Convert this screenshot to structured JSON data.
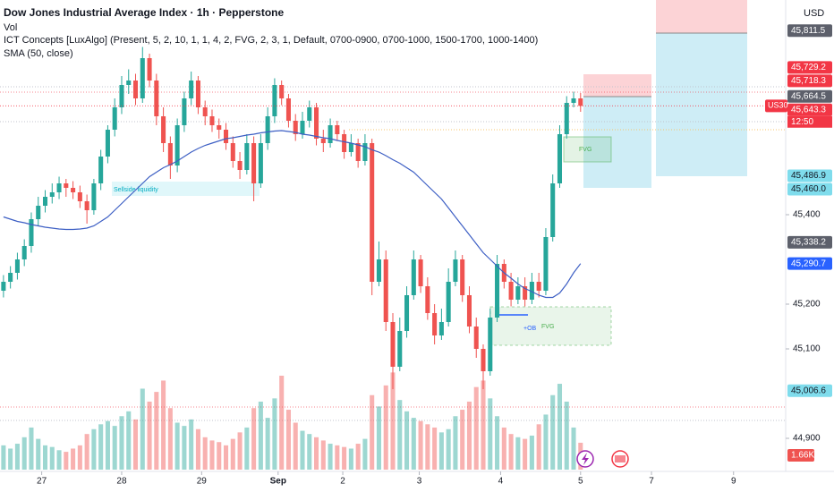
{
  "chart_data": {
    "type": "candlestick",
    "title": "Dow Jones Industrial Average Index · 1h · Pepperstone",
    "indicators": [
      "Vol",
      "ICT Concepts [LuxAlgo] (Present, 5, 2, 10, 1, 1, 4, 2, FVG, 2, 3, 1, Default, 0700-0900, 0700-1000, 1500-1700, 1000-1400)",
      "SMA (50, close)"
    ],
    "currency": "USD",
    "symbol_tag": "US30",
    "countdown": "12:50",
    "up_color": "#26a69a",
    "down_color": "#ef5350",
    "open": [
      45230,
      45250,
      45270,
      45300,
      45330,
      45390,
      45420,
      45440,
      45450,
      45470,
      45460,
      45450,
      45430,
      45410,
      45470,
      45530,
      45590,
      45640,
      45690,
      45700,
      45660,
      45750,
      45700,
      45620,
      45560,
      45510,
      45600,
      45660,
      45700,
      45640,
      45620,
      45600,
      45590,
      45560,
      45520,
      45500,
      45560,
      45470,
      45560,
      45620,
      45690,
      45660,
      45610,
      45580,
      45610,
      45640,
      45570,
      45560,
      45600,
      45580,
      45540,
      45560,
      45520,
      45560,
      45250,
      45300,
      45160,
      45060,
      45140,
      45220,
      45300,
      45240,
      45180,
      45130,
      45160,
      45250,
      45300,
      45220,
      45150,
      45100,
      45050,
      45170,
      45290,
      45250,
      45210,
      45240,
      45210,
      45250,
      45230,
      45350,
      45470,
      45580,
      45650,
      45660
    ],
    "high": [
      45265,
      45285,
      45315,
      45345,
      45405,
      45440,
      45455,
      45470,
      45485,
      45480,
      45475,
      45465,
      45445,
      45480,
      45545,
      45600,
      45660,
      45710,
      45725,
      45715,
      45775,
      45760,
      45715,
      45640,
      45575,
      45615,
      45675,
      45720,
      45710,
      45655,
      45635,
      45615,
      45605,
      45575,
      45540,
      45580,
      45575,
      45580,
      45640,
      45705,
      45700,
      45670,
      45625,
      45630,
      45655,
      45650,
      45590,
      45615,
      45610,
      45590,
      45580,
      45570,
      45580,
      45570,
      45340,
      45320,
      45180,
      45170,
      45240,
      45320,
      45310,
      45260,
      45200,
      45190,
      45280,
      45320,
      45310,
      45240,
      45170,
      45110,
      45190,
      45310,
      45300,
      45270,
      45260,
      45260,
      45270,
      45270,
      45370,
      45490,
      45600,
      45665,
      45675,
      45672
    ],
    "low": [
      45215,
      45235,
      45255,
      45285,
      45315,
      45375,
      45405,
      45425,
      45435,
      45440,
      45435,
      45415,
      45380,
      45400,
      45455,
      45515,
      45575,
      45625,
      45670,
      45645,
      45650,
      45685,
      45600,
      45540,
      45480,
      45495,
      45585,
      45645,
      45625,
      45600,
      45585,
      45570,
      45545,
      45505,
      45480,
      45490,
      45430,
      45460,
      45545,
      45605,
      45645,
      45595,
      45565,
      45570,
      45595,
      45555,
      45540,
      45550,
      45565,
      45525,
      45530,
      45505,
      45510,
      45220,
      45240,
      45140,
      45010,
      45050,
      45125,
      45210,
      45225,
      45165,
      45110,
      45120,
      45150,
      45240,
      45205,
      45135,
      45080,
      45010,
      45040,
      45160,
      45235,
      45195,
      45200,
      45195,
      45200,
      45215,
      45220,
      45340,
      45460,
      45570,
      45640,
      45630
    ],
    "close": [
      45250,
      45270,
      45300,
      45330,
      45390,
      45420,
      45440,
      45450,
      45470,
      45460,
      45450,
      45430,
      45410,
      45470,
      45530,
      45590,
      45640,
      45690,
      45700,
      45660,
      45750,
      45700,
      45620,
      45560,
      45510,
      45600,
      45660,
      45700,
      45640,
      45620,
      45600,
      45590,
      45560,
      45520,
      45500,
      45560,
      45470,
      45560,
      45620,
      45690,
      45660,
      45610,
      45580,
      45610,
      45640,
      45570,
      45560,
      45600,
      45580,
      45540,
      45560,
      45520,
      45560,
      45250,
      45300,
      45160,
      45060,
      45140,
      45220,
      45300,
      45240,
      45180,
      45130,
      45160,
      45250,
      45300,
      45220,
      45150,
      45100,
      45050,
      45170,
      45290,
      45250,
      45210,
      45240,
      45210,
      45250,
      45230,
      45350,
      45470,
      45580,
      45650,
      45660,
      45643.3
    ],
    "volume": {
      "values": [
        1500,
        1300,
        1600,
        2000,
        2600,
        1900,
        1500,
        1400,
        1200,
        1100,
        1300,
        1500,
        2200,
        2500,
        2800,
        3000,
        2700,
        3300,
        3600,
        3100,
        5000,
        4200,
        4800,
        5500,
        3800,
        2900,
        2700,
        3100,
        2500,
        2000,
        1800,
        1700,
        1500,
        1900,
        2300,
        2600,
        3800,
        4200,
        3200,
        4400,
        5800,
        3700,
        2900,
        2400,
        2200,
        2000,
        1800,
        1600,
        1500,
        1400,
        1300,
        1600,
        1900,
        4600,
        3900,
        5200,
        6000,
        4300,
        3600,
        3200,
        3000,
        2800,
        2600,
        2300,
        2500,
        3300,
        3700,
        4200,
        5100,
        5500,
        4400,
        3300,
        2600,
        2200,
        2000,
        1900,
        2100,
        2800,
        3400,
        4600,
        5300,
        4200,
        2600,
        1660
      ],
      "ylim": [
        0,
        29000
      ]
    },
    "volume_label": {
      "value": 1660,
      "label": "1.66K"
    },
    "sma": {
      "color": "#3d5fc4",
      "values": [
        45395,
        45390,
        45385,
        45382,
        45378,
        45375,
        45372,
        45370,
        45368,
        45367,
        45367,
        45368,
        45370,
        45375,
        45385,
        45395,
        45410,
        45425,
        45440,
        45455,
        45470,
        45485,
        45495,
        45505,
        45512,
        45520,
        45530,
        45540,
        45548,
        45555,
        45560,
        45565,
        45570,
        45572,
        45575,
        45578,
        45580,
        45583,
        45585,
        45587,
        45588,
        45586,
        45584,
        45580,
        45578,
        45575,
        45572,
        45570,
        45566,
        45563,
        45560,
        45556,
        45552,
        45545,
        45540,
        45532,
        45523,
        45515,
        45505,
        45495,
        45480,
        45465,
        45450,
        45435,
        45415,
        45395,
        45375,
        45355,
        45335,
        45315,
        45300,
        45285,
        45270,
        45258,
        45245,
        45235,
        45228,
        45220,
        45215,
        45215,
        45225,
        45245,
        45270,
        45290.7
      ]
    },
    "price_labels": [
      {
        "value": 45811.5,
        "label": "45,811.5",
        "color": "#5d606b",
        "text_color": "#ffffff"
      },
      {
        "value": 45729.2,
        "label": "45,729.2",
        "color": "#f23645",
        "text_color": "#ffffff"
      },
      {
        "value": 45718.3,
        "label": "45,718.3",
        "color": "#f23645",
        "text_color": "#ffffff"
      },
      {
        "value": 45664.5,
        "label": "45,664.5",
        "color": "#5d606b",
        "text_color": "#ffffff"
      },
      {
        "value": 45643.3,
        "label": "45,643.3",
        "color": "#f23645",
        "text_color": "#ffffff"
      },
      {
        "value": 45486.9,
        "label": "45,486.9",
        "color": "#7fdcec",
        "text_color": "#131722"
      },
      {
        "value": 45460.0,
        "label": "45,460.0",
        "color": "#7fdcec",
        "text_color": "#131722"
      },
      {
        "value": 45338.2,
        "label": "45,338.2",
        "color": "#5d606b",
        "text_color": "#ffffff"
      },
      {
        "value": 45290.7,
        "label": "45,290.7",
        "color": "#2962ff",
        "text_color": "#ffffff"
      },
      {
        "value": 45006.6,
        "label": "45,006.6",
        "color": "#7fdcec",
        "text_color": "#131722"
      }
    ],
    "ylim": [
      44840,
      45880
    ],
    "yticks": [
      {
        "value": 44900,
        "label": "44,900"
      },
      {
        "value": 45100,
        "label": "45,100"
      },
      {
        "value": 45200,
        "label": "45,200"
      },
      {
        "value": 45400,
        "label": "45,400"
      }
    ],
    "xlim": [
      0,
      113
    ],
    "xticks": [
      {
        "value": 6,
        "label": "27"
      },
      {
        "value": 17.5,
        "label": "28"
      },
      {
        "value": 29,
        "label": "29"
      },
      {
        "value": 40,
        "label": "Sep"
      },
      {
        "value": 49.3,
        "label": "2"
      },
      {
        "value": 60.3,
        "label": "3"
      },
      {
        "value": 72,
        "label": "4"
      },
      {
        "value": 83.5,
        "label": "5"
      },
      {
        "value": 93.7,
        "label": "7"
      },
      {
        "value": 105.5,
        "label": "9"
      }
    ],
    "annotations": [
      "Sellside liquidity",
      "FVG",
      "+OB",
      "FVG"
    ]
  }
}
